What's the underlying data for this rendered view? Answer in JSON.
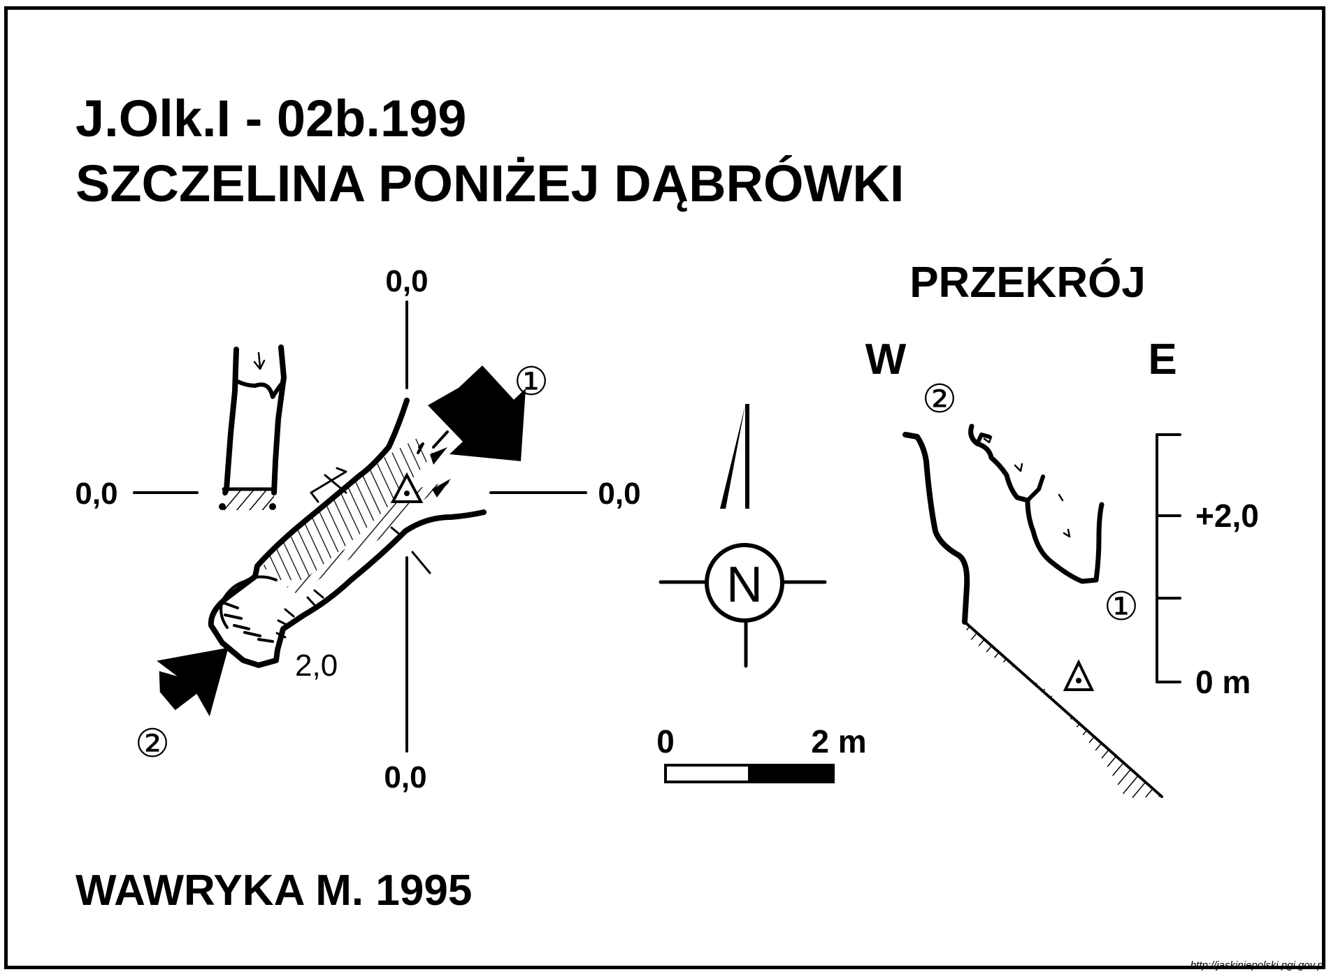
{
  "title": {
    "code": "J.Olk.I - 02b.199",
    "name": "SZCZELINA PONIŻEJ DĄBRÓWKI"
  },
  "plan": {
    "axis_top": "0,0",
    "axis_left": "0,0",
    "axis_right": "0,0",
    "axis_bottom": "0,0",
    "depth_label": "2,0",
    "entrance_1_marker": "①",
    "entrance_2_marker": "②"
  },
  "compass": {
    "north_label": "N"
  },
  "scale_bar": {
    "start_label": "0",
    "end_label": "2 m"
  },
  "section": {
    "title": "PRZEKRÓJ",
    "west_label": "W",
    "east_label": "E",
    "entrance_2_marker": "②",
    "entrance_1_marker": "①",
    "height_ticks": [
      "+2,0",
      "0 m"
    ]
  },
  "author": "WAWRYKA M. 1995",
  "source_url": "http://jaskiniepolski.pgi.gov.pl",
  "colors": {
    "ink": "#000000",
    "paper": "#ffffff"
  }
}
